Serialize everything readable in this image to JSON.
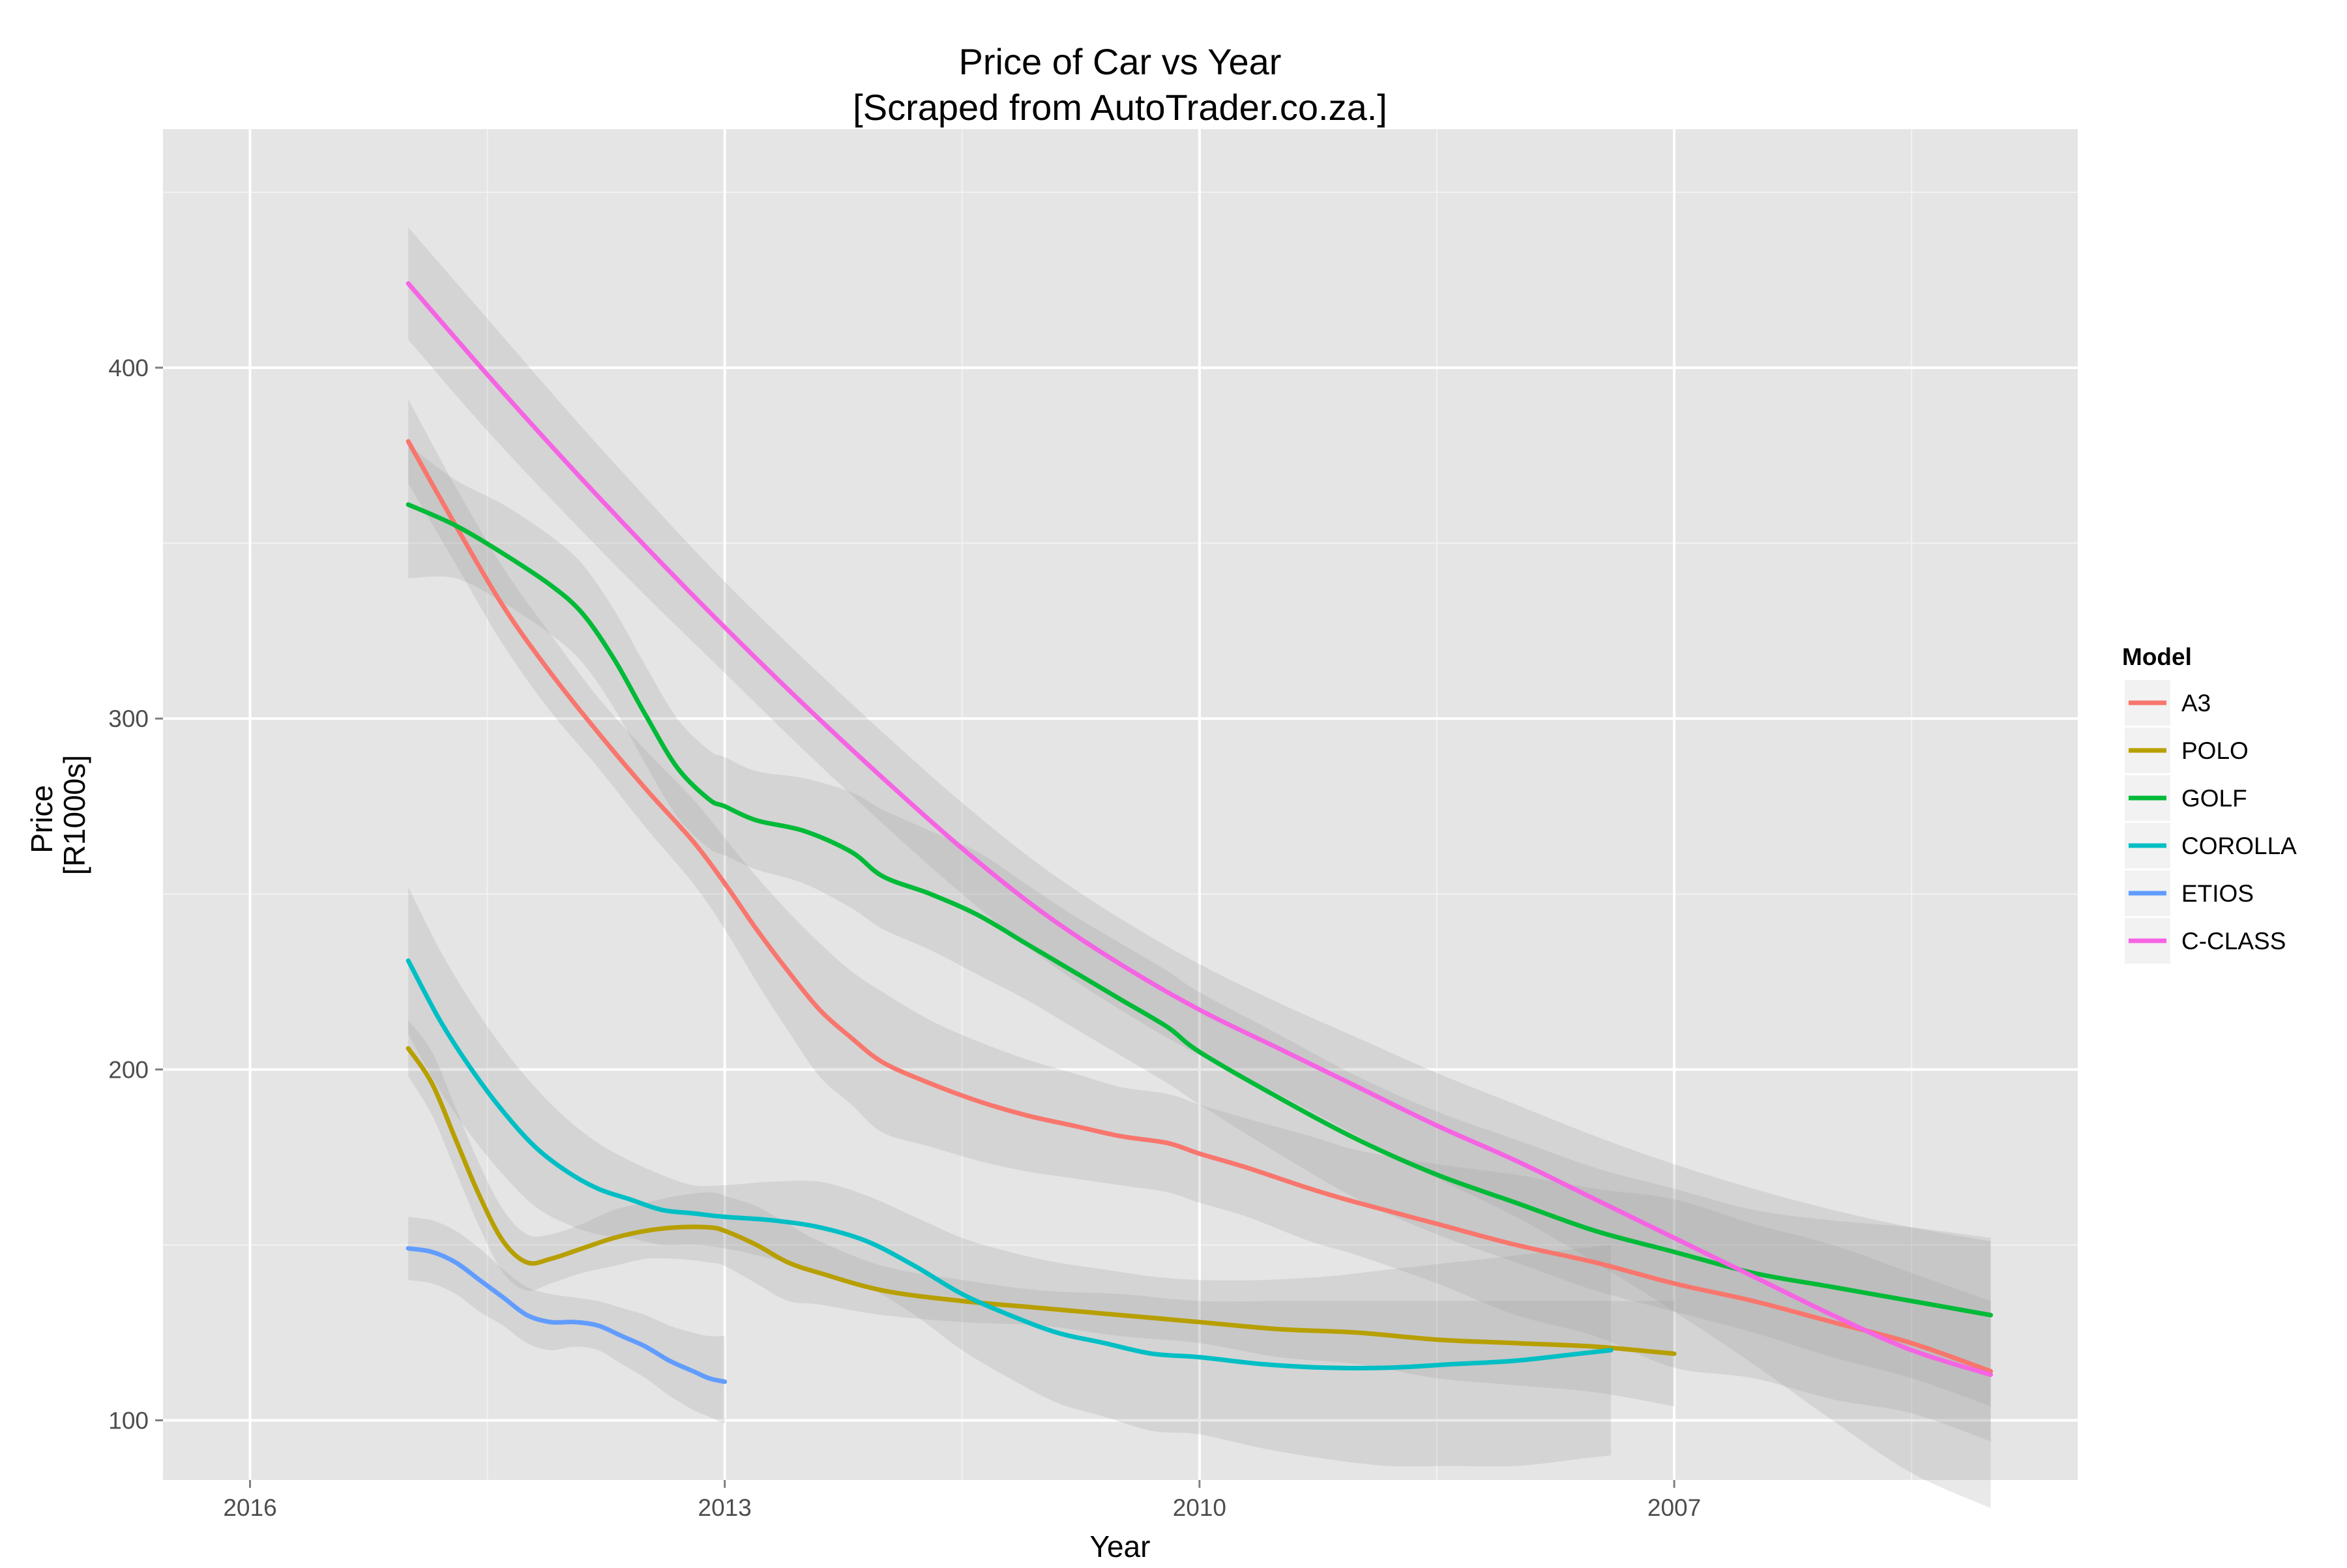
{
  "chart_data": {
    "type": "line",
    "title": "Price of Car vs Year",
    "subtitle": "[Scraped from AutoTrader.co.za.]",
    "xlabel": "Year",
    "ylabel": "Price\n[R1000s]",
    "ylabel_lines": [
      "Price",
      "[R1000s]"
    ],
    "x_reversed": true,
    "xlim": [
      2016.55,
      2004.45
    ],
    "ylim": [
      83,
      468
    ],
    "x_ticks": [
      2016,
      2013,
      2010,
      2007
    ],
    "x_tick_labels": [
      "2016",
      "2013",
      "2010",
      "2007"
    ],
    "y_ticks": [
      100,
      200,
      300,
      400
    ],
    "y_tick_labels": [
      "100",
      "200",
      "300",
      "400"
    ],
    "grid": true,
    "legend_title": "Model",
    "legend_position": "right",
    "series": [
      {
        "name": "A3",
        "color": "#F8766D",
        "x": [
          2015,
          2014.7,
          2014.4,
          2014.1,
          2013.8,
          2013.5,
          2013.2,
          2013,
          2012.8,
          2012.6,
          2012.4,
          2012.2,
          2012,
          2011.7,
          2011.4,
          2011.1,
          2010.8,
          2010.5,
          2010.2,
          2010,
          2009.7,
          2009.3,
          2009,
          2008.5,
          2008,
          2007.5,
          2007,
          2006.5,
          2006,
          2005.5,
          2005
        ],
        "y": [
          379,
          355,
          332,
          313,
          296,
          280,
          265,
          253,
          240,
          228,
          217,
          209,
          202,
          196,
          191,
          187,
          184,
          181,
          179,
          176,
          172,
          166,
          162,
          156,
          150,
          145,
          139,
          134,
          128,
          122,
          114
        ],
        "band_upper": [
          391,
          366,
          343,
          324,
          306,
          291,
          277,
          266,
          255,
          245,
          236,
          228,
          222,
          214,
          208,
          203,
          199,
          195,
          193,
          190,
          186,
          181,
          177,
          173,
          170,
          166,
          163,
          156,
          150,
          142,
          134
        ],
        "band_lower": [
          367,
          344,
          321,
          302,
          286,
          269,
          253,
          240,
          225,
          211,
          198,
          190,
          182,
          178,
          174,
          171,
          169,
          167,
          165,
          162,
          158,
          151,
          147,
          139,
          130,
          124,
          115,
          112,
          106,
          102,
          94
        ]
      },
      {
        "name": "POLO",
        "color": "#B79F00",
        "x": [
          2015,
          2014.85,
          2014.7,
          2014.55,
          2014.4,
          2014.25,
          2014.1,
          2013.9,
          2013.7,
          2013.5,
          2013.3,
          2013.1,
          2013,
          2012.8,
          2012.6,
          2012.4,
          2012,
          2011.5,
          2011,
          2010.5,
          2010,
          2009.5,
          2009,
          2008.5,
          2008,
          2007.5,
          2007
        ],
        "y": [
          206,
          196,
          180,
          164,
          151,
          145,
          146,
          149,
          152,
          154,
          155,
          155,
          154,
          150,
          145,
          142,
          137,
          134,
          132,
          130,
          128,
          126,
          125,
          123,
          122,
          121,
          119
        ],
        "band_upper": [
          214,
          205,
          189,
          173,
          160,
          153,
          153,
          156,
          160,
          162,
          164,
          165,
          164,
          161,
          156,
          151,
          144,
          140,
          137,
          136,
          134,
          134,
          134,
          134,
          134,
          134,
          134
        ],
        "band_lower": [
          198,
          187,
          171,
          155,
          142,
          137,
          139,
          142,
          144,
          146,
          146,
          145,
          144,
          139,
          134,
          133,
          130,
          128,
          127,
          124,
          122,
          118,
          116,
          112,
          110,
          108,
          104
        ]
      },
      {
        "name": "GOLF",
        "color": "#00BA38",
        "x": [
          2015,
          2014.7,
          2014.4,
          2014.1,
          2013.9,
          2013.7,
          2013.5,
          2013.3,
          2013.1,
          2013,
          2012.8,
          2012.5,
          2012.2,
          2012,
          2011.7,
          2011.4,
          2011.1,
          2010.8,
          2010.5,
          2010.2,
          2010,
          2009.5,
          2009,
          2008.5,
          2008,
          2007.5,
          2007,
          2006.5,
          2006,
          2005.5,
          2005
        ],
        "y": [
          361,
          355,
          347,
          338,
          330,
          317,
          301,
          286,
          277,
          275,
          271,
          268,
          262,
          255,
          250,
          244,
          236,
          228,
          220,
          212,
          205,
          192,
          180,
          170,
          162,
          154,
          148,
          142,
          138,
          134,
          130
        ],
        "band_upper": [
          378,
          368,
          361,
          352,
          344,
          331,
          315,
          300,
          291,
          289,
          285,
          283,
          279,
          274,
          268,
          262,
          253,
          244,
          236,
          228,
          222,
          210,
          198,
          188,
          180,
          172,
          166,
          160,
          157,
          155,
          152
        ],
        "band_lower": [
          340,
          340,
          333,
          324,
          316,
          303,
          287,
          272,
          263,
          261,
          257,
          253,
          246,
          240,
          234,
          227,
          220,
          212,
          204,
          196,
          190,
          176,
          163,
          153,
          145,
          137,
          131,
          125,
          118,
          112,
          104
        ]
      },
      {
        "name": "COROLLA",
        "color": "#00BFC4",
        "x": [
          2015,
          2014.8,
          2014.6,
          2014.4,
          2014.2,
          2014,
          2013.8,
          2013.6,
          2013.4,
          2013.2,
          2013,
          2012.7,
          2012.4,
          2012.1,
          2011.8,
          2011.5,
          2011.2,
          2010.9,
          2010.6,
          2010.3,
          2010,
          2009.6,
          2009.2,
          2008.8,
          2008.4,
          2008,
          2007.6,
          2007.4
        ],
        "y": [
          231,
          214,
          200,
          188,
          178,
          171,
          166,
          163,
          160,
          159,
          158,
          157,
          155,
          151,
          144,
          136,
          130,
          125,
          122,
          119,
          118,
          116,
          115,
          115,
          116,
          117,
          119,
          120
        ],
        "band_upper": [
          252,
          234,
          219,
          206,
          195,
          186,
          179,
          174,
          170,
          167,
          167,
          168,
          168,
          164,
          158,
          152,
          148,
          145,
          143,
          141,
          140,
          140,
          141,
          143,
          145,
          147,
          149,
          150
        ],
        "band_lower": [
          210,
          194,
          181,
          170,
          161,
          156,
          153,
          152,
          150,
          150,
          149,
          146,
          142,
          138,
          130,
          120,
          112,
          105,
          101,
          97,
          96,
          92,
          89,
          87,
          87,
          87,
          89,
          90
        ]
      },
      {
        "name": "ETIOS",
        "color": "#619CFF",
        "x": [
          2015,
          2014.85,
          2014.7,
          2014.55,
          2014.4,
          2014.25,
          2014.1,
          2013.95,
          2013.8,
          2013.65,
          2013.5,
          2013.35,
          2013.2,
          2013.1,
          2013
        ],
        "y": [
          149,
          148,
          145,
          140,
          135,
          130,
          128,
          128,
          127,
          124,
          121,
          117,
          114,
          112,
          111
        ],
        "band_upper": [
          158,
          157,
          154,
          149,
          143,
          138,
          136,
          135,
          134,
          132,
          130,
          127,
          125,
          124,
          124
        ],
        "band_lower": [
          140,
          139,
          136,
          131,
          127,
          122,
          120,
          121,
          120,
          116,
          112,
          107,
          103,
          101,
          99
        ]
      },
      {
        "name": "C-CLASS",
        "color": "#F564E3",
        "x": [
          2015,
          2014.5,
          2014,
          2013.5,
          2013,
          2012.5,
          2012,
          2011.5,
          2011,
          2010.5,
          2010,
          2009.5,
          2009,
          2008.5,
          2008,
          2007.5,
          2007,
          2006.5,
          2006,
          2005.5,
          2005
        ],
        "y": [
          424,
          398,
          373,
          349,
          326,
          304,
          283,
          263,
          245,
          230,
          217,
          206,
          195,
          184,
          174,
          163,
          152,
          141,
          130,
          120,
          113
        ],
        "band_upper": [
          440,
          414,
          388,
          363,
          339,
          317,
          296,
          276,
          258,
          243,
          230,
          219,
          209,
          199,
          190,
          181,
          173,
          166,
          160,
          155,
          151
        ],
        "band_lower": [
          408,
          382,
          358,
          335,
          313,
          291,
          270,
          250,
          232,
          217,
          204,
          193,
          181,
          169,
          158,
          145,
          131,
          116,
          100,
          85,
          75
        ]
      }
    ]
  }
}
